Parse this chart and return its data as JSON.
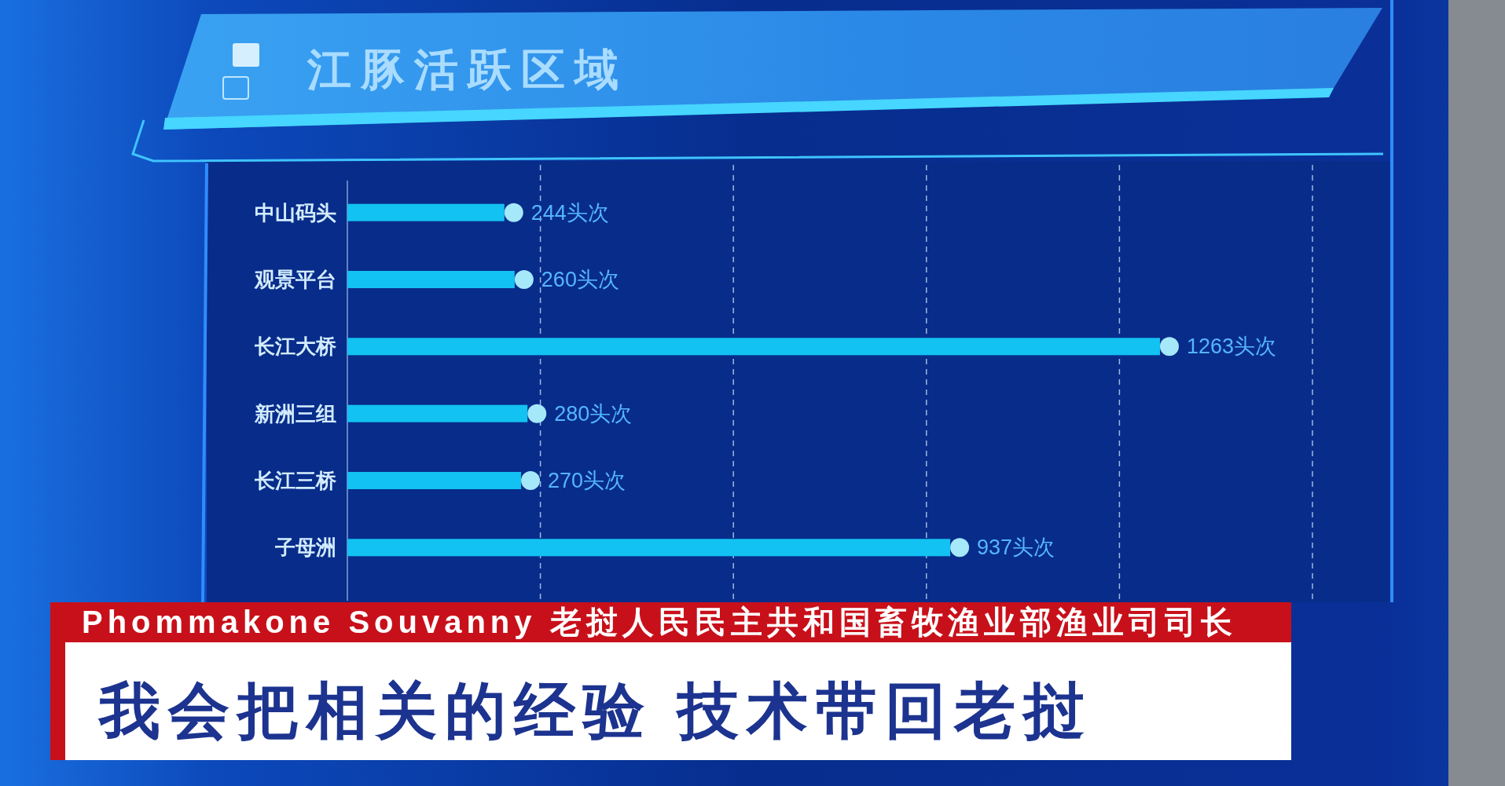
{
  "chart_data": {
    "type": "bar",
    "orientation": "horizontal",
    "title": "江豚活跃区域",
    "categories": [
      "中山码头",
      "观景平台",
      "长江大桥",
      "新洲三组",
      "长江三桥",
      "子母洲"
    ],
    "values": [
      244,
      260,
      1263,
      280,
      270,
      937
    ],
    "value_labels": [
      "244头次",
      "260头次",
      "1263头次",
      "280头次",
      "270头次",
      "937头次"
    ],
    "color": "#12c2f2",
    "xlim": [
      0,
      1500
    ],
    "xticks": [
      {
        "value": 300,
        "label": null
      },
      {
        "value": 600,
        "label": null
      },
      {
        "value": 900,
        "label": null
      },
      {
        "value": 1200,
        "label": null
      },
      {
        "value": 1500,
        "label": null
      }
    ],
    "grid": "x",
    "tick_labels": "y",
    "marker": "circle",
    "annotations": [
      "Phommakone Souvanny 老挝人民民主共和国畜牧渔业部渔业司司长",
      "我会把相关的经验 技术带回老挝"
    ]
  }
}
